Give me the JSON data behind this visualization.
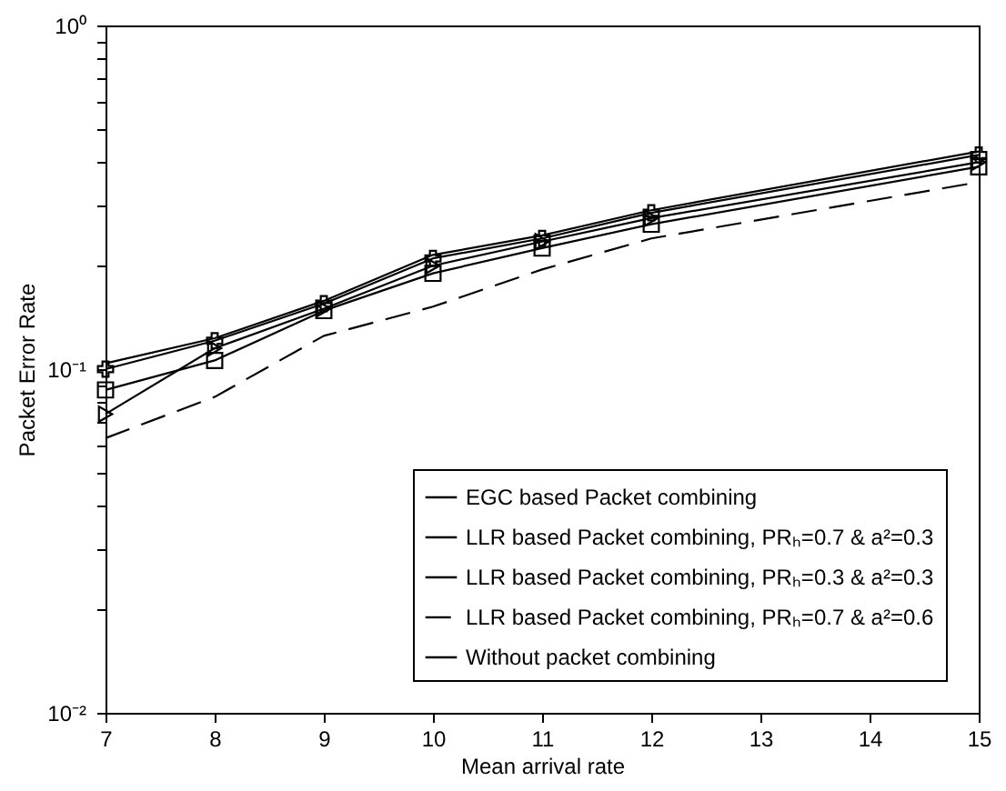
{
  "chart_data": {
    "type": "line",
    "xlabel": "Mean arrival rate",
    "ylabel": "Packet Error Rate",
    "x": [
      7,
      8,
      9,
      10,
      11,
      12,
      15
    ],
    "series": [
      {
        "name": "EGC based Packet combining",
        "color": "#000000",
        "marker": "triangle",
        "line_style": "solid",
        "values": [
          0.074,
          0.115,
          0.15,
          0.2,
          0.235,
          0.275,
          0.4
        ]
      },
      {
        "name": "LLR based Packet combining, PRₕ=0.7 & a²=0.3",
        "color": "#000000",
        "marker": "none",
        "line_style": "solid",
        "values": [
          0.104,
          0.123,
          0.158,
          0.215,
          0.245,
          0.29,
          0.43
        ]
      },
      {
        "name": "LLR based Packet combining, PRₕ=0.3 & a²=0.3",
        "color": "#000000",
        "marker": "cross",
        "line_style": "solid",
        "values": [
          0.1,
          0.121,
          0.155,
          0.21,
          0.24,
          0.285,
          0.42
        ]
      },
      {
        "name": "LLR based Packet combining, PRₕ=0.7 & a²=0.6",
        "color": "#000000",
        "marker": "none",
        "line_style": "dashed",
        "values": [
          0.063,
          0.083,
          0.125,
          0.152,
          0.195,
          0.24,
          0.35
        ]
      },
      {
        "name": "Without packet combining",
        "color": "#000000",
        "marker": "square",
        "line_style": "solid",
        "values": [
          0.087,
          0.106,
          0.148,
          0.19,
          0.225,
          0.264,
          0.388
        ]
      }
    ],
    "log": true,
    "xlim": [
      7,
      15
    ],
    "xticks": [
      7,
      8,
      9,
      10,
      11,
      12,
      13,
      14,
      15
    ],
    "ylim": [
      0.01,
      1
    ],
    "yticks": [
      {
        "value": 0.01,
        "label": "10⁻²"
      },
      {
        "value": 0.02,
        "label": null
      },
      {
        "value": 0.03,
        "label": null
      },
      {
        "value": 0.04,
        "label": null
      },
      {
        "value": 0.05,
        "label": null
      },
      {
        "value": 0.06,
        "label": null
      },
      {
        "value": 0.07,
        "label": null
      },
      {
        "value": 0.08,
        "label": null
      },
      {
        "value": 0.09,
        "label": null
      },
      {
        "value": 0.1,
        "label": "10⁻¹"
      },
      {
        "value": 0.2,
        "label": null
      },
      {
        "value": 0.3,
        "label": null
      },
      {
        "value": 0.4,
        "label": null
      },
      {
        "value": 0.5,
        "label": null
      },
      {
        "value": 0.6,
        "label": null
      },
      {
        "value": 0.7,
        "label": null
      },
      {
        "value": 0.8,
        "label": null
      },
      {
        "value": 0.9,
        "label": null
      },
      {
        "value": 1,
        "label": "10⁰"
      }
    ],
    "grid": false,
    "legend": "bottom right"
  }
}
